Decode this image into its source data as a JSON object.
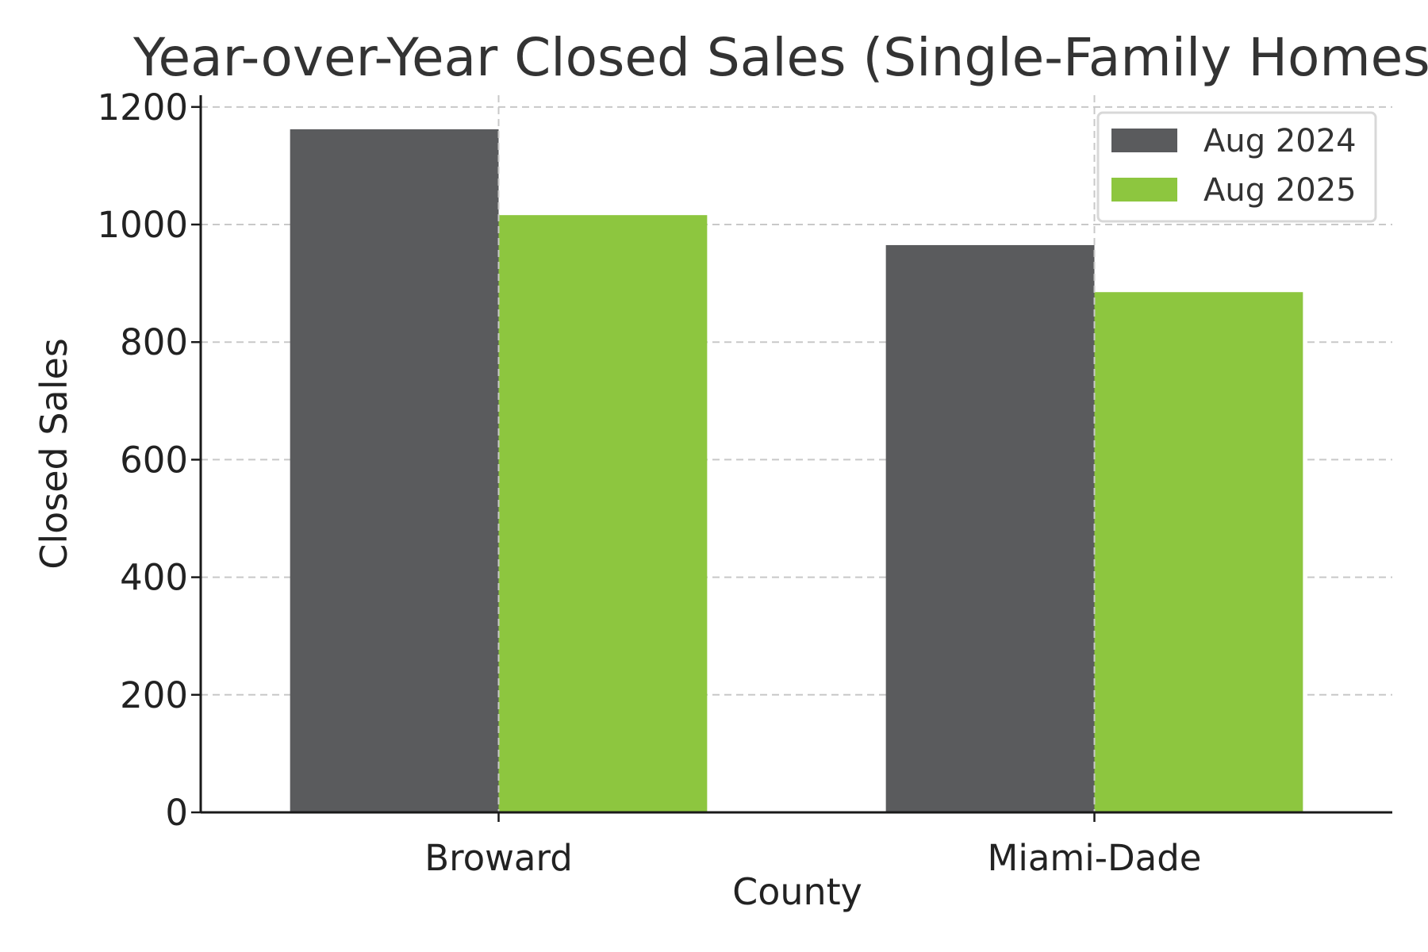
{
  "chart_data": {
    "type": "bar",
    "title": "Year-over-Year Closed Sales (Single-Family Homes)",
    "xlabel": "County",
    "ylabel": "Closed Sales",
    "categories": [
      "Broward",
      "Miami-Dade"
    ],
    "series": [
      {
        "name": "Aug 2024",
        "values": [
          1162,
          965
        ],
        "color": "#5a5b5d"
      },
      {
        "name": "Aug 2025",
        "values": [
          1016,
          885
        ],
        "color": "#8dc63f"
      }
    ],
    "ylim": [
      0,
      1220
    ],
    "yticks": [
      0,
      200,
      400,
      600,
      800,
      1000,
      1200
    ],
    "grid": true,
    "legend_position": "top-right"
  }
}
